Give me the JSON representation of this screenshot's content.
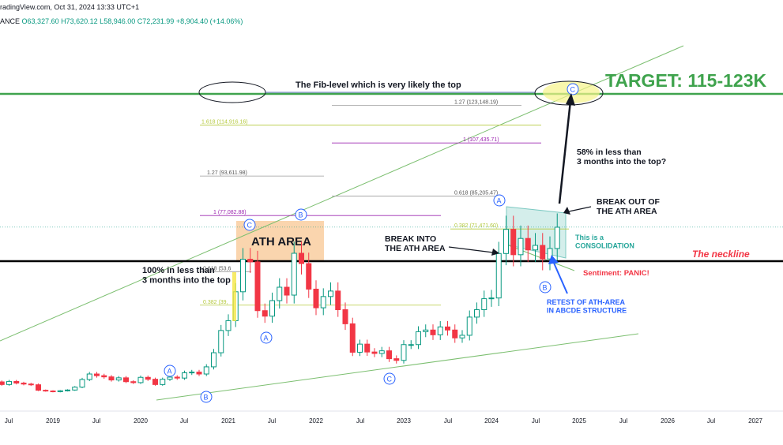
{
  "header": {
    "source_fragment": "radingView.com, Oct 31, 2024 13:33 UTC+1",
    "exchange_fragment": "ANCE",
    "ohlc": {
      "o_label": "O",
      "o": "63,327.60",
      "h_label": "H",
      "h": "73,620.12",
      "l_label": "L",
      "l": "58,946.00",
      "c_label": "C",
      "c": "72,231.99",
      "change": "+8,904.40 (+14.06%)"
    }
  },
  "colors": {
    "up": "#089981",
    "down": "#f23645",
    "neckline": "#000000",
    "target": "#3fa34d",
    "trend": "#7cbf70",
    "fib": "#9b9b9b",
    "fib_purple": "#9c27b0",
    "fib_yellow": "#b5c93e",
    "wave": "#2962ff",
    "ath_area": "#f5b26b",
    "consolidation": "#26a69a",
    "panic": "#f23645"
  },
  "chart_data": {
    "type": "candlestick",
    "interval": "1M",
    "x_tick_labels": [
      "Jul",
      "2019",
      "Jul",
      "2020",
      "Jul",
      "2021",
      "Jul",
      "2022",
      "Jul",
      "2023",
      "Jul",
      "2024",
      "Jul",
      "2025",
      "Jul",
      "2026",
      "Jul",
      "2027"
    ],
    "monthly_closes": [
      {
        "date": "2018-06",
        "o": 7500,
        "c": 6400
      },
      {
        "date": "2018-07",
        "o": 6400,
        "c": 7700
      },
      {
        "date": "2018-08",
        "o": 7700,
        "c": 7000
      },
      {
        "date": "2018-09",
        "o": 7000,
        "c": 6600
      },
      {
        "date": "2018-10",
        "o": 6600,
        "c": 6300
      },
      {
        "date": "2018-11",
        "o": 6300,
        "c": 4000
      },
      {
        "date": "2018-12",
        "o": 4000,
        "c": 3700
      },
      {
        "date": "2019-01",
        "o": 3700,
        "c": 3400
      },
      {
        "date": "2019-02",
        "o": 3400,
        "c": 3800
      },
      {
        "date": "2019-03",
        "o": 3800,
        "c": 4100
      },
      {
        "date": "2019-04",
        "o": 4100,
        "c": 5300
      },
      {
        "date": "2019-05",
        "o": 5300,
        "c": 8500
      },
      {
        "date": "2019-06",
        "o": 8500,
        "c": 10800
      },
      {
        "date": "2019-07",
        "o": 10800,
        "c": 10100
      },
      {
        "date": "2019-08",
        "o": 10100,
        "c": 9600
      },
      {
        "date": "2019-09",
        "o": 9600,
        "c": 8300
      },
      {
        "date": "2019-10",
        "o": 8300,
        "c": 9200
      },
      {
        "date": "2019-11",
        "o": 9200,
        "c": 7600
      },
      {
        "date": "2019-12",
        "o": 7600,
        "c": 7200
      },
      {
        "date": "2020-01",
        "o": 7200,
        "c": 9400
      },
      {
        "date": "2020-02",
        "o": 9400,
        "c": 8600
      },
      {
        "date": "2020-03",
        "o": 8600,
        "c": 6400
      },
      {
        "date": "2020-04",
        "o": 6400,
        "c": 8600
      },
      {
        "date": "2020-05",
        "o": 8600,
        "c": 9500
      },
      {
        "date": "2020-06",
        "o": 9500,
        "c": 9100
      },
      {
        "date": "2020-07",
        "o": 9100,
        "c": 11300
      },
      {
        "date": "2020-08",
        "o": 11300,
        "c": 11600
      },
      {
        "date": "2020-09",
        "o": 11600,
        "c": 10800
      },
      {
        "date": "2020-10",
        "o": 10800,
        "c": 13800
      },
      {
        "date": "2020-11",
        "o": 13800,
        "c": 19700
      },
      {
        "date": "2020-12",
        "o": 19700,
        "c": 29000
      },
      {
        "date": "2021-01",
        "o": 29000,
        "c": 33100
      },
      {
        "date": "2021-02",
        "o": 33100,
        "c": 45200
      },
      {
        "date": "2021-03",
        "o": 45200,
        "c": 58800
      },
      {
        "date": "2021-04",
        "o": 58800,
        "c": 57700
      },
      {
        "date": "2021-05",
        "o": 57700,
        "c": 37300
      },
      {
        "date": "2021-06",
        "o": 37300,
        "c": 35000
      },
      {
        "date": "2021-07",
        "o": 35000,
        "c": 41500
      },
      {
        "date": "2021-08",
        "o": 41500,
        "c": 47100
      },
      {
        "date": "2021-09",
        "o": 47100,
        "c": 43800
      },
      {
        "date": "2021-10",
        "o": 43800,
        "c": 61300
      },
      {
        "date": "2021-11",
        "o": 61300,
        "c": 57000
      },
      {
        "date": "2021-12",
        "o": 57000,
        "c": 46300
      },
      {
        "date": "2022-01",
        "o": 46300,
        "c": 38500
      },
      {
        "date": "2022-02",
        "o": 38500,
        "c": 43200
      },
      {
        "date": "2022-03",
        "o": 43200,
        "c": 45500
      },
      {
        "date": "2022-04",
        "o": 45500,
        "c": 37700
      },
      {
        "date": "2022-05",
        "o": 37700,
        "c": 31800
      },
      {
        "date": "2022-06",
        "o": 31800,
        "c": 19900
      },
      {
        "date": "2022-07",
        "o": 19900,
        "c": 23300
      },
      {
        "date": "2022-08",
        "o": 23300,
        "c": 20000
      },
      {
        "date": "2022-09",
        "o": 20000,
        "c": 19400
      },
      {
        "date": "2022-10",
        "o": 19400,
        "c": 20500
      },
      {
        "date": "2022-11",
        "o": 20500,
        "c": 17200
      },
      {
        "date": "2022-12",
        "o": 17200,
        "c": 16500
      },
      {
        "date": "2023-01",
        "o": 16500,
        "c": 23100
      },
      {
        "date": "2023-02",
        "o": 23100,
        "c": 23100
      },
      {
        "date": "2023-03",
        "o": 23100,
        "c": 28500
      },
      {
        "date": "2023-04",
        "o": 28500,
        "c": 29200
      },
      {
        "date": "2023-05",
        "o": 29200,
        "c": 27200
      },
      {
        "date": "2023-06",
        "o": 27200,
        "c": 30500
      },
      {
        "date": "2023-07",
        "o": 30500,
        "c": 29200
      },
      {
        "date": "2023-08",
        "o": 29200,
        "c": 25900
      },
      {
        "date": "2023-09",
        "o": 25900,
        "c": 27000
      },
      {
        "date": "2023-10",
        "o": 27000,
        "c": 34600
      },
      {
        "date": "2023-11",
        "o": 34600,
        "c": 37700
      },
      {
        "date": "2023-12",
        "o": 37700,
        "c": 42300
      },
      {
        "date": "2024-01",
        "o": 42300,
        "c": 42600
      },
      {
        "date": "2024-02",
        "o": 42600,
        "c": 61200
      },
      {
        "date": "2024-03",
        "o": 61200,
        "c": 71300
      },
      {
        "date": "2024-04",
        "o": 71300,
        "c": 60700
      },
      {
        "date": "2024-05",
        "o": 60700,
        "c": 67500
      },
      {
        "date": "2024-06",
        "o": 67500,
        "c": 62700
      },
      {
        "date": "2024-07",
        "o": 62700,
        "c": 64600
      },
      {
        "date": "2024-08",
        "o": 64600,
        "c": 58900
      },
      {
        "date": "2024-09",
        "o": 58900,
        "c": 63300
      },
      {
        "date": "2024-10",
        "o": 63300,
        "c": 72200
      }
    ],
    "fib_levels": [
      {
        "label": "1.27 (123,148.19)",
        "value": 123148.19,
        "color": "fib"
      },
      {
        "label": "1.618 (114,916.16)",
        "value": 114916.16,
        "color": "fib_yellow"
      },
      {
        "label": "1 (107,435.71)",
        "value": 107435.71,
        "color": "fib_purple"
      },
      {
        "label": "1.27 (93,611.98)",
        "value": 93611.98,
        "color": "fib"
      },
      {
        "label": "0.618 (85,205.47)",
        "value": 85205.47,
        "color": "fib"
      },
      {
        "label": "1 (77,082.88)",
        "value": 77082.88,
        "color": "fib_purple"
      },
      {
        "label": "0.382 (71,471.60)",
        "value": 71471.6,
        "color": "fib_yellow"
      },
      {
        "label": "0.618 (53,6",
        "value": 53600,
        "color": "fib"
      },
      {
        "label": "0.382 (39,",
        "value": 39600,
        "color": "fib_yellow"
      }
    ],
    "wave_labels": [
      {
        "label": "A",
        "date": "2019-12"
      },
      {
        "label": "B",
        "date": "2020-03"
      },
      {
        "label": "C",
        "date": "2021-04"
      },
      {
        "label": "A",
        "date": "2021-07"
      },
      {
        "label": "B",
        "date": "2021-11"
      },
      {
        "label": "C",
        "date": "2022-11"
      },
      {
        "label": "A",
        "date": "2024-03"
      },
      {
        "label": "B",
        "date": "2024-08"
      },
      {
        "label": "C",
        "date": "2025-01"
      }
    ]
  },
  "annotations": {
    "target": "TARGET: 115-123K",
    "fib_top": "The Fib-level which is very likely the top",
    "ath_area": "ATH AREA",
    "neckline": "The neckline",
    "pct_100": "100% in less than\n3 months into the top",
    "pct_58": "58% in less than\n3 months into the top?",
    "break_into": "BREAK INTO\nTHE ATH AREA",
    "break_out": "BREAK OUT OF\nTHE ATH AREA",
    "consolidation": "This is a\nCONSOLIDATION",
    "panic": "Sentiment: PANIC!",
    "retest": "RETEST OF ATH-AREA\nIN ABCDE STRUCTURE"
  }
}
